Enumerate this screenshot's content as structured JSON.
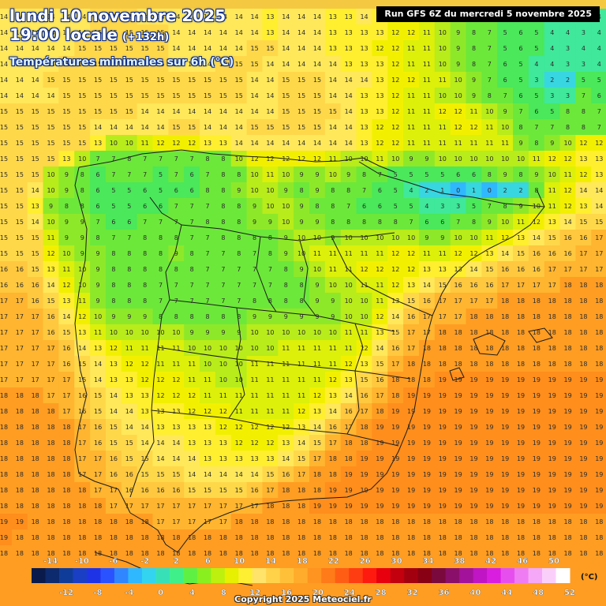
{
  "header": {
    "date": "lundi 10 novembre 2025",
    "time": "19:00 locale",
    "lead": "(+132h)",
    "subtitle": "Températures minimales sur 6h (°C)",
    "run": "Run GFS 6Z du mercredi 5 novembre 2025"
  },
  "footer": {
    "copyright": "Copyright 2025 Meteociel.fr"
  },
  "legend": {
    "unit": "(°C)",
    "top_labels": [
      "-14",
      "-10",
      "-6",
      "-2",
      "2",
      "6",
      "10",
      "14",
      "18",
      "22",
      "26",
      "30",
      "34",
      "38",
      "42",
      "46",
      "50"
    ],
    "bottom_labels": [
      "-12",
      "-8",
      "-4",
      "0",
      "4",
      "8",
      "12",
      "16",
      "20",
      "24",
      "28",
      "32",
      "36",
      "40",
      "44",
      "48",
      "52"
    ],
    "colors": [
      "#0a1a4a",
      "#0d2a6e",
      "#103c99",
      "#1a3fc4",
      "#1f33e6",
      "#2b52ff",
      "#2f86ff",
      "#30b8ff",
      "#32d4f0",
      "#38e0b8",
      "#3ff08a",
      "#5ff044",
      "#8aef1f",
      "#bdf00e",
      "#e6f000",
      "#ffef33",
      "#ffe36a",
      "#ffd24a",
      "#ffc039",
      "#ffab2b",
      "#ff9420",
      "#ff7a18",
      "#ff5d14",
      "#ff3d12",
      "#ff1a10",
      "#e8000e",
      "#c2000e",
      "#a3000f",
      "#870013",
      "#7a0a3e",
      "#8a0f6a",
      "#a3129a",
      "#bf15c4",
      "#d91ee0",
      "#e64fee",
      "#ef7cf3",
      "#f5a8f7",
      "#fad0fb",
      "#ffffff"
    ]
  },
  "map_data": {
    "region": "Iberian Peninsula",
    "variable": "minimum temperature over 6h",
    "unit": "°C",
    "grid_rows": [
      "14 14 14 14 14 14 15 15 15 14 14 14 14 14 14 14 14 13 14 14 14 13 13 14 13 12 12 11 10 9 8 7 5 6 5 4 4 3 4 5",
      "14 14 14 14 14 14 15 15 15 15 15 14 14 14 14 14 14 13 14 14 14 13 13 13 13 12 12 11 10 9 8 7 5 6 5 4 4 3 4 5",
      "14 14 14 14 14 15 15 15 15 15 15 14 14 14 14 14 15 15 14 14 14 13 13 13 12 12 11 11 10 9 8 7 5 6 5 4 3 4 4 5",
      "14 14 14 14 15 15 15 15 15 15 15 14 14 14 15 15 15 14 14 14 14 14 13 13 13 12 11 11 10 9 8 7 6 5 4 4 3 3 4 5",
      "14 14 14 15 15 15 15 15 15 15 15 15 15 15 15 15 14 14 15 15 15 14 14 14 13 12 12 11 11 10 9 7 6 5 3 2 2 5 5 5",
      "14 14 14 14 15 15 15 15 15 15 15 15 15 15 15 15 14 14 15 15 15 14 14 13 13 12 11 11 10 10 9 8 7 6 5 3 3 7 6 6",
      "15 15 15 15 15 15 15 15 15 14 14 14 14 14 14 14 14 14 15 15 15 15 14 13 13 12 11 11 12 12 11 10 9 7 6 5 8 8 7 8",
      "15 15 15 15 15 15 14 14 14 14 14 15 15 14 14 14 15 15 15 15 15 14 14 13 12 12 11 11 11 12 12 11 10 8 7 7 8 8 7 8",
      "15 15 15 15 15 15 13 10 10 11 12 12 12 13 13 14 14 14 14 14 14 14 14 13 12 12 11 11 11 11 11 11 11 9 8 9 10 12 12 12",
      "15 15 15 15 13 10 7 7 8 7 7 7 7 8 8 10 12 12 12 12 12 11 10 10 11 10 9 9 10 10 10 10 10 10 11 12 12 13 13 13",
      "15 15 15 10 9 8 6 7 7 7 5 7 6 7 8 8 10 11 10 9 9 10 9 8 7 5 5 5 5 6 6 8 9 8 9 10 11 12 13 13",
      "15 15 14 10 9 8 6 5 5 6 5 6 6 8 8 9 10 10 9 8 9 8 8 7 6 5 4 2 1 0 1 0 2 2 8 11 12 14 14 14",
      "15 15 13 9 8 8 6 5 5 6 6 7 7 7 8 8 9 10 10 9 8 8 7 6 6 5 5 4 3 3 5 7 8 9 10 11 12 13 14 14",
      "15 15 14 10 9 9 7 6 6 7 7 7 7 8 8 8 9 9 10 9 9 8 8 8 8 8 7 6 6 7 8 9 10 11 12 13 14 15 15 15",
      "15 15 15 11 9 9 8 7 7 8 8 8 7 7 8 8 8 8 9 10 10 9 10 10 10 10 10 9 9 10 10 11 12 13 14 15 16 16 17 17",
      "15 15 15 12 10 9 9 8 8 8 8 9 8 7 7 8 7 8 9 10 11 11 11 11 11 12 12 11 11 12 12 13 14 15 16 16 16 17 17 17",
      "16 16 15 13 11 10 9 8 8 8 8 8 8 7 7 7 7 7 8 9 10 11 11 12 12 12 12 13 13 13 14 15 16 16 16 17 17 17 17 17",
      "16 16 16 14 12 10 9 8 8 8 7 7 7 7 7 7 7 7 8 8 9 10 10 11 11 12 13 14 15 16 16 16 17 17 17 17 18 18 18 18",
      "17 17 16 15 13 11 9 8 8 8 7 7 7 7 7 7 8 8 8 8 9 9 10 10 11 13 15 16 17 17 17 17 18 18 18 18 18 18 18 18",
      "17 17 17 16 14 12 10 9 9 9 8 8 8 8 8 8 9 9 9 9 9 9 10 10 12 14 16 17 17 17 18 18 18 18 18 18 18 18 18 18",
      "17 17 17 16 15 13 11 10 10 10 10 10 9 9 9 9 10 10 10 10 10 10 11 11 13 15 17 17 18 18 18 18 18 18 18 18 18 18 18 18",
      "17 17 17 17 16 14 13 12 11 11 11 11 10 10 10 10 10 10 11 11 11 11 11 12 14 16 17 18 18 18 18 18 18 18 18 18 18 18 18 18",
      "17 17 17 17 16 15 14 13 12 12 11 11 11 10 10 10 11 11 11 11 11 11 12 13 15 17 18 18 18 18 18 18 18 18 18 18 18 18 18 18",
      "17 17 17 17 17 15 14 13 13 12 12 12 11 11 10 10 11 11 11 11 11 12 13 15 16 18 18 18 19 19 19 19 19 19 19 19 19 19 19 19",
      "18 18 18 17 17 16 15 14 13 13 12 12 12 11 11 11 11 11 11 11 12 13 14 16 17 18 19 19 19 19 19 19 19 19 19 19 19 19 19 19",
      "18 18 18 18 17 16 15 14 14 13 13 13 12 12 12 11 11 11 11 12 13 14 16 17 18 19 19 19 19 19 19 19 19 19 19 19 19 19 19 19",
      "18 18 18 18 18 17 16 15 14 14 13 13 13 13 12 12 12 12 12 13 14 16 17 18 19 19 19 19 19 19 19 19 19 19 19 19 19 19 19 19",
      "18 18 18 18 18 17 16 15 15 14 14 14 13 13 13 12 12 12 13 14 15 17 18 18 19 19 19 19 19 19 19 19 19 19 19 19 19 19 19 19",
      "18 18 18 18 18 17 17 16 15 15 14 14 14 13 13 13 13 13 14 15 17 18 18 19 19 19 19 19 19 19 19 19 19 19 19 19 19 19 19 19",
      "18 18 18 18 18 17 17 16 16 15 15 15 14 14 14 14 14 15 16 17 18 18 19 19 19 19 19 19 19 19 19 19 19 19 19 19 19 19 19 19",
      "18 18 18 18 18 18 17 17 16 16 16 16 15 15 15 15 16 17 18 18 18 19 19 19 19 19 19 19 19 19 19 19 19 19 19 19 19 19 19 19",
      "18 18 18 18 18 18 18 17 17 17 17 17 17 17 17 17 17 18 18 18 19 19 19 19 19 19 19 19 19 19 19 19 19 19 19 19 19 19 19 19",
      "19 19 18 18 18 18 18 18 18 18 17 17 17 17 17 18 18 18 18 18 18 18 18 18 18 18 18 18 18 18 18 18 18 18 18 18 18 18 18 18",
      "19 18 18 18 18 18 18 18 18 18 18 18 18 18 18 18 18 18 18 18 18 18 18 18 18 18 18 18 18 18 18 18 18 18 18 18 18 18 18 18",
      "18 18 18 18 18 18 18 18 18 18 18 18 18 18 18 18 18 18 18 18 18 18 18 18 18 18 18 18 18 18 18 18 18 18 18 18 18 18 18 18",
      "18 18 18 18 18 18 18 18 18 18 18 18 18 18 18 18 18 18 18 18 18 18 18 18 18 18 18 18 18 18 18 18 18 18 18 18 18 18 18 18",
      "18 18 18 18 18 18 18 18 18 18 18 18 18 18 18 18 18 18 18 18 18 18 18 18 18 18 18 18 18 18 18 18 18 18 18 18 18 18 18 18",
      "18 18 18 18 18 18 18 18 18 18 18 18 18 18 18 18 18 18 18 18 18 18 18 18 18 18 18 18 18 18 18 18 18 18 18 18 18 18 18 18"
    ]
  }
}
